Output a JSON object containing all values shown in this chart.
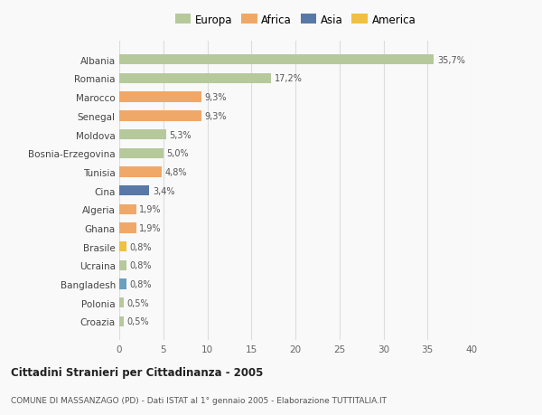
{
  "categories": [
    "Croazia",
    "Polonia",
    "Bangladesh",
    "Ucraina",
    "Brasile",
    "Ghana",
    "Algeria",
    "Cina",
    "Tunisia",
    "Bosnia-Erzegovina",
    "Moldova",
    "Senegal",
    "Marocco",
    "Romania",
    "Albania"
  ],
  "values": [
    0.5,
    0.5,
    0.8,
    0.8,
    0.8,
    1.9,
    1.9,
    3.4,
    4.8,
    5.0,
    5.3,
    9.3,
    9.3,
    17.2,
    35.7
  ],
  "labels": [
    "0,5%",
    "0,5%",
    "0,8%",
    "0,8%",
    "0,8%",
    "1,9%",
    "1,9%",
    "3,4%",
    "4,8%",
    "5,0%",
    "5,3%",
    "9,3%",
    "9,3%",
    "17,2%",
    "35,7%"
  ],
  "colors": [
    "#b5c99a",
    "#b5c99a",
    "#6a9fc0",
    "#b5c99a",
    "#f0c040",
    "#f0a868",
    "#f0a868",
    "#5878a8",
    "#f0a868",
    "#b5c99a",
    "#b5c99a",
    "#f0a868",
    "#f0a868",
    "#b5c99a",
    "#b5c99a"
  ],
  "legend_labels": [
    "Europa",
    "Africa",
    "Asia",
    "America"
  ],
  "legend_colors": [
    "#b5c99a",
    "#f0a868",
    "#5878a8",
    "#f0c040"
  ],
  "title": "Cittadini Stranieri per Cittadinanza - 2005",
  "subtitle": "COMUNE DI MASSANZAGO (PD) - Dati ISTAT al 1° gennaio 2005 - Elaborazione TUTTITALIA.IT",
  "xlim": [
    0,
    40
  ],
  "xticks": [
    0,
    5,
    10,
    15,
    20,
    25,
    30,
    35,
    40
  ],
  "bg_color": "#f9f9f9",
  "grid_color": "#dddddd"
}
